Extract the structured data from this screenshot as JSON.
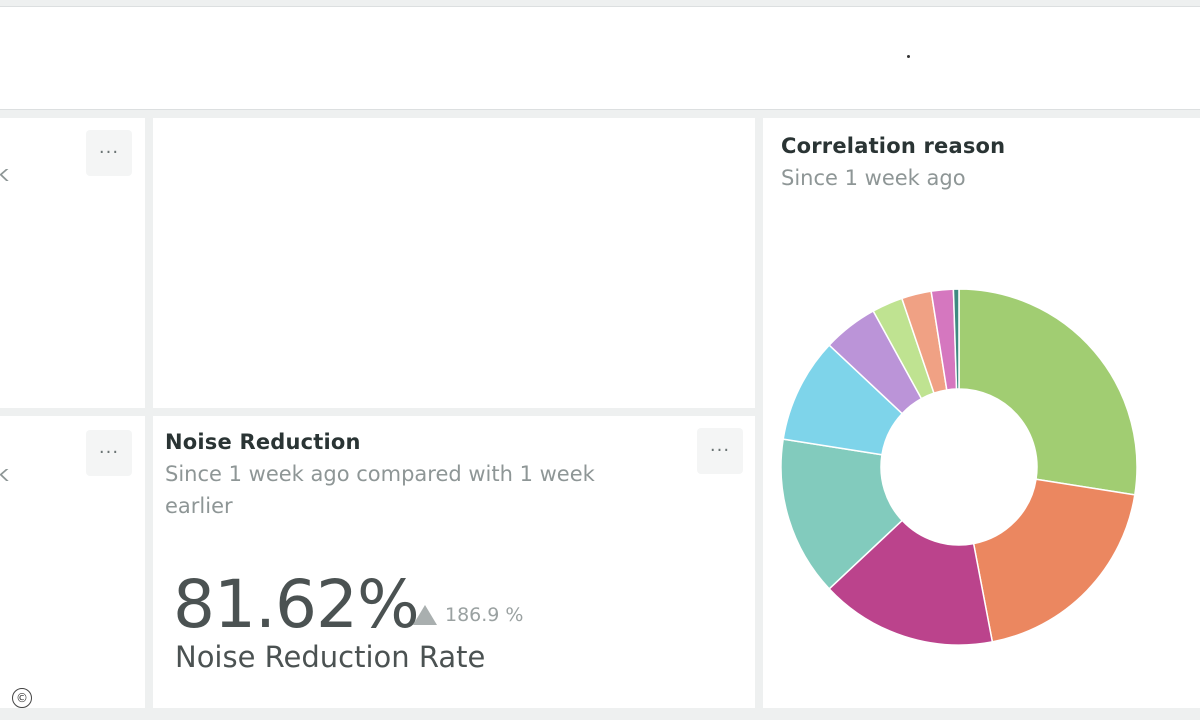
{
  "cards": {
    "left_top": {
      "partial_text": "k",
      "more_label": "···"
    },
    "left_bottom": {
      "partial_text": "k",
      "more_label": "···"
    },
    "noise_reduction": {
      "title": "Noise Reduction",
      "subtitle_line1": "Since 1 week ago compared with 1 week",
      "subtitle_line2": "earlier",
      "value": "81.62%",
      "delta": "186.9 %",
      "metric_label": "Noise Reduction Rate",
      "more_label": "···"
    },
    "correlation_reason": {
      "title": "Correlation reason",
      "subtitle": "Since 1 week ago"
    }
  },
  "footer": {
    "copyright_glyph": "©"
  },
  "chart_data": {
    "type": "pie",
    "title": "Correlation reason",
    "subtitle": "Since 1 week ago",
    "donut": true,
    "slices": [
      {
        "value": 27.5,
        "color": "#a1cd72"
      },
      {
        "value": 19.5,
        "color": "#eb8760"
      },
      {
        "value": 16.0,
        "color": "#bb438c"
      },
      {
        "value": 14.5,
        "color": "#82cbbd"
      },
      {
        "value": 9.5,
        "color": "#7ed4ea"
      },
      {
        "value": 5.0,
        "color": "#bb94d8"
      },
      {
        "value": 2.8,
        "color": "#bfe391"
      },
      {
        "value": 2.7,
        "color": "#f0a184"
      },
      {
        "value": 2.0,
        "color": "#d577bf"
      },
      {
        "value": 0.5,
        "color": "#3f8a82"
      }
    ]
  }
}
